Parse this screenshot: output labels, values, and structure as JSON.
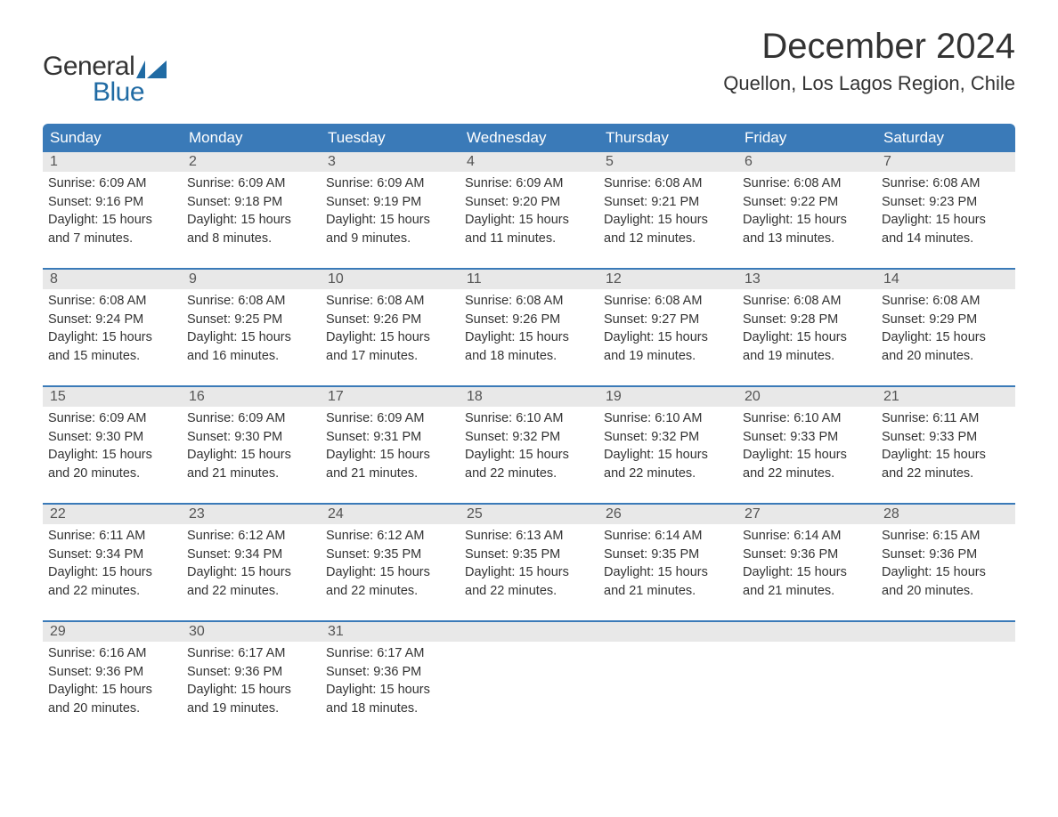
{
  "logo": {
    "part1": "General",
    "part2": "Blue",
    "iconColor": "#206ba4"
  },
  "title": "December 2024",
  "location": "Quellon, Los Lagos Region, Chile",
  "colors": {
    "headerBg": "#3a7ab8",
    "headerText": "#ffffff",
    "dayNumBg": "#e8e8e8",
    "weekBorder": "#3a7ab8",
    "bodyText": "#333333",
    "logoBlue": "#206ba4"
  },
  "dayNames": [
    "Sunday",
    "Monday",
    "Tuesday",
    "Wednesday",
    "Thursday",
    "Friday",
    "Saturday"
  ],
  "weeks": [
    [
      {
        "num": "1",
        "sunrise": "6:09 AM",
        "sunset": "9:16 PM",
        "daylight1": "Daylight: 15 hours",
        "daylight2": "and 7 minutes."
      },
      {
        "num": "2",
        "sunrise": "6:09 AM",
        "sunset": "9:18 PM",
        "daylight1": "Daylight: 15 hours",
        "daylight2": "and 8 minutes."
      },
      {
        "num": "3",
        "sunrise": "6:09 AM",
        "sunset": "9:19 PM",
        "daylight1": "Daylight: 15 hours",
        "daylight2": "and 9 minutes."
      },
      {
        "num": "4",
        "sunrise": "6:09 AM",
        "sunset": "9:20 PM",
        "daylight1": "Daylight: 15 hours",
        "daylight2": "and 11 minutes."
      },
      {
        "num": "5",
        "sunrise": "6:08 AM",
        "sunset": "9:21 PM",
        "daylight1": "Daylight: 15 hours",
        "daylight2": "and 12 minutes."
      },
      {
        "num": "6",
        "sunrise": "6:08 AM",
        "sunset": "9:22 PM",
        "daylight1": "Daylight: 15 hours",
        "daylight2": "and 13 minutes."
      },
      {
        "num": "7",
        "sunrise": "6:08 AM",
        "sunset": "9:23 PM",
        "daylight1": "Daylight: 15 hours",
        "daylight2": "and 14 minutes."
      }
    ],
    [
      {
        "num": "8",
        "sunrise": "6:08 AM",
        "sunset": "9:24 PM",
        "daylight1": "Daylight: 15 hours",
        "daylight2": "and 15 minutes."
      },
      {
        "num": "9",
        "sunrise": "6:08 AM",
        "sunset": "9:25 PM",
        "daylight1": "Daylight: 15 hours",
        "daylight2": "and 16 minutes."
      },
      {
        "num": "10",
        "sunrise": "6:08 AM",
        "sunset": "9:26 PM",
        "daylight1": "Daylight: 15 hours",
        "daylight2": "and 17 minutes."
      },
      {
        "num": "11",
        "sunrise": "6:08 AM",
        "sunset": "9:26 PM",
        "daylight1": "Daylight: 15 hours",
        "daylight2": "and 18 minutes."
      },
      {
        "num": "12",
        "sunrise": "6:08 AM",
        "sunset": "9:27 PM",
        "daylight1": "Daylight: 15 hours",
        "daylight2": "and 19 minutes."
      },
      {
        "num": "13",
        "sunrise": "6:08 AM",
        "sunset": "9:28 PM",
        "daylight1": "Daylight: 15 hours",
        "daylight2": "and 19 minutes."
      },
      {
        "num": "14",
        "sunrise": "6:08 AM",
        "sunset": "9:29 PM",
        "daylight1": "Daylight: 15 hours",
        "daylight2": "and 20 minutes."
      }
    ],
    [
      {
        "num": "15",
        "sunrise": "6:09 AM",
        "sunset": "9:30 PM",
        "daylight1": "Daylight: 15 hours",
        "daylight2": "and 20 minutes."
      },
      {
        "num": "16",
        "sunrise": "6:09 AM",
        "sunset": "9:30 PM",
        "daylight1": "Daylight: 15 hours",
        "daylight2": "and 21 minutes."
      },
      {
        "num": "17",
        "sunrise": "6:09 AM",
        "sunset": "9:31 PM",
        "daylight1": "Daylight: 15 hours",
        "daylight2": "and 21 minutes."
      },
      {
        "num": "18",
        "sunrise": "6:10 AM",
        "sunset": "9:32 PM",
        "daylight1": "Daylight: 15 hours",
        "daylight2": "and 22 minutes."
      },
      {
        "num": "19",
        "sunrise": "6:10 AM",
        "sunset": "9:32 PM",
        "daylight1": "Daylight: 15 hours",
        "daylight2": "and 22 minutes."
      },
      {
        "num": "20",
        "sunrise": "6:10 AM",
        "sunset": "9:33 PM",
        "daylight1": "Daylight: 15 hours",
        "daylight2": "and 22 minutes."
      },
      {
        "num": "21",
        "sunrise": "6:11 AM",
        "sunset": "9:33 PM",
        "daylight1": "Daylight: 15 hours",
        "daylight2": "and 22 minutes."
      }
    ],
    [
      {
        "num": "22",
        "sunrise": "6:11 AM",
        "sunset": "9:34 PM",
        "daylight1": "Daylight: 15 hours",
        "daylight2": "and 22 minutes."
      },
      {
        "num": "23",
        "sunrise": "6:12 AM",
        "sunset": "9:34 PM",
        "daylight1": "Daylight: 15 hours",
        "daylight2": "and 22 minutes."
      },
      {
        "num": "24",
        "sunrise": "6:12 AM",
        "sunset": "9:35 PM",
        "daylight1": "Daylight: 15 hours",
        "daylight2": "and 22 minutes."
      },
      {
        "num": "25",
        "sunrise": "6:13 AM",
        "sunset": "9:35 PM",
        "daylight1": "Daylight: 15 hours",
        "daylight2": "and 22 minutes."
      },
      {
        "num": "26",
        "sunrise": "6:14 AM",
        "sunset": "9:35 PM",
        "daylight1": "Daylight: 15 hours",
        "daylight2": "and 21 minutes."
      },
      {
        "num": "27",
        "sunrise": "6:14 AM",
        "sunset": "9:36 PM",
        "daylight1": "Daylight: 15 hours",
        "daylight2": "and 21 minutes."
      },
      {
        "num": "28",
        "sunrise": "6:15 AM",
        "sunset": "9:36 PM",
        "daylight1": "Daylight: 15 hours",
        "daylight2": "and 20 minutes."
      }
    ],
    [
      {
        "num": "29",
        "sunrise": "6:16 AM",
        "sunset": "9:36 PM",
        "daylight1": "Daylight: 15 hours",
        "daylight2": "and 20 minutes."
      },
      {
        "num": "30",
        "sunrise": "6:17 AM",
        "sunset": "9:36 PM",
        "daylight1": "Daylight: 15 hours",
        "daylight2": "and 19 minutes."
      },
      {
        "num": "31",
        "sunrise": "6:17 AM",
        "sunset": "9:36 PM",
        "daylight1": "Daylight: 15 hours",
        "daylight2": "and 18 minutes."
      },
      null,
      null,
      null,
      null
    ]
  ],
  "labels": {
    "sunrisePrefix": "Sunrise: ",
    "sunsetPrefix": "Sunset: "
  }
}
